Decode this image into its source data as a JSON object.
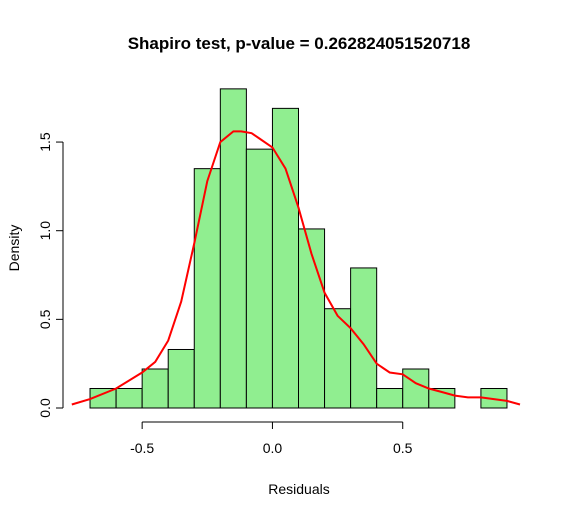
{
  "chart_data": {
    "type": "bar",
    "title": "Shapiro test, p-value = 0.262824051520718",
    "xlabel": "Residuals",
    "ylabel": "Density",
    "xlim": [
      -0.75,
      0.95
    ],
    "ylim": [
      0,
      1.85
    ],
    "x_ticks": [
      -0.5,
      0.0,
      0.5
    ],
    "x_tick_labels": [
      "-0.5",
      "0.0",
      "0.5"
    ],
    "y_ticks": [
      0.0,
      0.5,
      1.0,
      1.5
    ],
    "y_tick_labels": [
      "0.0",
      "0.5",
      "1.0",
      "1.5"
    ],
    "grid": false,
    "legend": false,
    "colors": {
      "bar_fill": "#90EE90",
      "bar_stroke": "#000000",
      "density_line": "#FF0000"
    },
    "series": [
      {
        "type": "histogram",
        "bin_width": 0.1,
        "bins": [
          {
            "start": -0.7,
            "end": -0.6,
            "density": 0.11
          },
          {
            "start": -0.6,
            "end": -0.5,
            "density": 0.11
          },
          {
            "start": -0.5,
            "end": -0.4,
            "density": 0.22
          },
          {
            "start": -0.4,
            "end": -0.3,
            "density": 0.33
          },
          {
            "start": -0.3,
            "end": -0.2,
            "density": 1.35
          },
          {
            "start": -0.2,
            "end": -0.1,
            "density": 1.8
          },
          {
            "start": -0.1,
            "end": 0.0,
            "density": 1.46
          },
          {
            "start": 0.0,
            "end": 0.1,
            "density": 1.69
          },
          {
            "start": 0.1,
            "end": 0.2,
            "density": 1.01
          },
          {
            "start": 0.2,
            "end": 0.3,
            "density": 0.56
          },
          {
            "start": 0.3,
            "end": 0.4,
            "density": 0.79
          },
          {
            "start": 0.4,
            "end": 0.5,
            "density": 0.11
          },
          {
            "start": 0.5,
            "end": 0.6,
            "density": 0.22
          },
          {
            "start": 0.6,
            "end": 0.7,
            "density": 0.11
          },
          {
            "start": 0.7,
            "end": 0.8,
            "density": 0.0
          },
          {
            "start": 0.8,
            "end": 0.9,
            "density": 0.11
          }
        ]
      },
      {
        "type": "line",
        "x": [
          -0.77,
          -0.7,
          -0.6,
          -0.5,
          -0.45,
          -0.4,
          -0.35,
          -0.3,
          -0.25,
          -0.2,
          -0.15,
          -0.12,
          -0.08,
          -0.05,
          0.0,
          0.05,
          0.1,
          0.15,
          0.2,
          0.25,
          0.3,
          0.35,
          0.4,
          0.45,
          0.5,
          0.55,
          0.6,
          0.65,
          0.7,
          0.75,
          0.8,
          0.85,
          0.9,
          0.95
        ],
        "y": [
          0.02,
          0.05,
          0.11,
          0.2,
          0.26,
          0.38,
          0.6,
          0.93,
          1.28,
          1.5,
          1.56,
          1.56,
          1.55,
          1.52,
          1.47,
          1.35,
          1.13,
          0.87,
          0.65,
          0.52,
          0.45,
          0.36,
          0.25,
          0.2,
          0.19,
          0.14,
          0.11,
          0.09,
          0.07,
          0.06,
          0.06,
          0.05,
          0.04,
          0.02
        ]
      }
    ]
  }
}
